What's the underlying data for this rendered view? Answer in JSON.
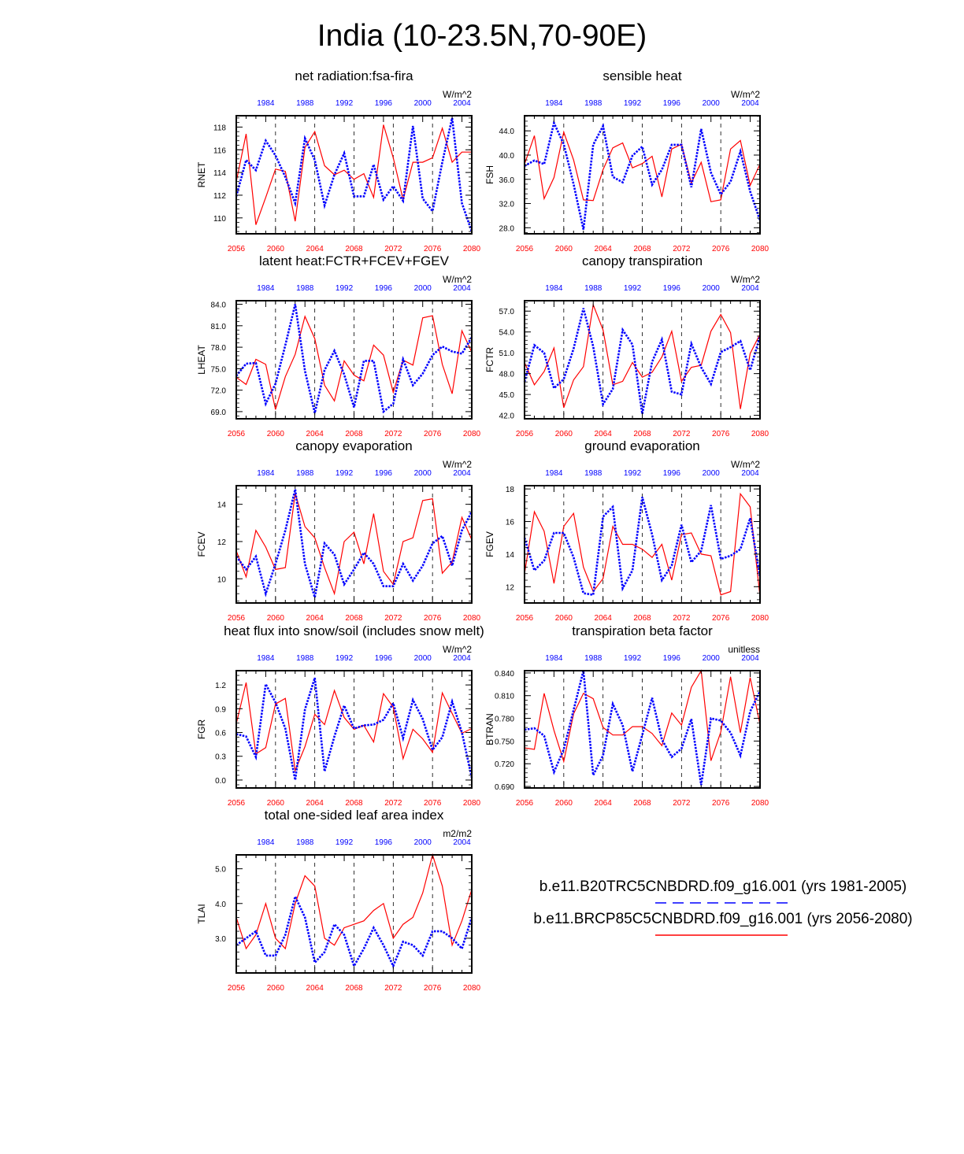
{
  "page": {
    "title": "India (10-23.5N,70-90E)",
    "legend": {
      "entries": [
        {
          "label": "b.e11.B20TRC5CNBDRD.f09_g16.001 (yrs 1981-2005)",
          "color": "#0000ff",
          "style": "dashed"
        },
        {
          "label": "b.e11.BRCP85C5CNBDRD.f09_g16.001 (yrs 2056-2080)",
          "color": "#ff0000",
          "style": "solid"
        }
      ]
    }
  },
  "colors": {
    "historical": "#0000ff",
    "future": "#ff0000",
    "axis": "#000000"
  },
  "chart_data": [
    {
      "type": "line",
      "title": "net radiation:fsa-fira",
      "ylabel": "RNET",
      "units": "W/m^2",
      "ylim": [
        108.6,
        119.0
      ],
      "yticks": [
        110,
        112,
        114,
        116,
        118
      ],
      "ytick_labels": [
        "110",
        "112",
        "114",
        "116",
        "118"
      ],
      "x_bottom_ticks": [
        "2056",
        "2060",
        "2064",
        "2068",
        "2072",
        "2076",
        "2080"
      ],
      "x_top_ticks": [
        "1984",
        "1988",
        "1992",
        "1996",
        "2000",
        "2004"
      ],
      "series": [
        {
          "name": "b.e11.BRCP85C5CNBDRD.f09_g16.001 (yrs 2056-2080)",
          "x_start": 2056,
          "values": [
            113.2,
            117.4,
            109.4,
            111.8,
            114.3,
            114.1,
            109.7,
            116.2,
            117.6,
            114.6,
            113.8,
            114.2,
            113.4,
            113.9,
            111.8,
            118.2,
            115.3,
            111.6,
            114.9,
            114.9,
            115.3,
            117.9,
            114.9,
            115.8,
            115.8
          ]
        },
        {
          "name": "b.e11.B20TRC5CNBDRD.f09_g16.001 (yrs 1981-2005)",
          "x_start": 1981,
          "values": [
            111.9,
            115.1,
            114.2,
            116.8,
            115.5,
            113.6,
            111.3,
            117.0,
            115.1,
            111.1,
            113.8,
            115.7,
            111.9,
            111.9,
            114.7,
            111.6,
            112.8,
            111.5,
            118.1,
            111.7,
            110.6,
            114.9,
            118.8,
            111.3,
            108.8
          ]
        }
      ]
    },
    {
      "type": "line",
      "title": "sensible heat",
      "ylabel": "FSH",
      "units": "W/m^2",
      "ylim": [
        27.0,
        46.5
      ],
      "yticks": [
        28,
        32,
        36,
        40,
        44
      ],
      "ytick_labels": [
        "28.0",
        "32.0",
        "36.0",
        "40.0",
        "44.0"
      ],
      "x_bottom_ticks": [
        "2056",
        "2060",
        "2064",
        "2068",
        "2072",
        "2076",
        "2080"
      ],
      "x_top_ticks": [
        "1984",
        "1988",
        "1992",
        "1996",
        "2000",
        "2004"
      ],
      "series": [
        {
          "name": "b.e11.BRCP85C5CNBDRD.f09_g16.001 (yrs 2056-2080)",
          "x_start": 2056,
          "values": [
            38.5,
            43.2,
            32.8,
            36.3,
            43.8,
            39.2,
            32.6,
            32.5,
            37.6,
            41.2,
            42.0,
            37.9,
            38.6,
            39.8,
            33.1,
            41.0,
            41.8,
            35.4,
            38.8,
            32.3,
            32.6,
            41.0,
            42.4,
            35.0,
            38.5
          ]
        },
        {
          "name": "b.e11.B20TRC5CNBDRD.f09_g16.001 (yrs 1981-2005)",
          "x_start": 1981,
          "values": [
            38.2,
            39.1,
            38.5,
            45.3,
            41.8,
            35.2,
            27.7,
            41.7,
            44.8,
            36.4,
            35.5,
            39.9,
            41.4,
            35.1,
            37.6,
            41.7,
            41.7,
            34.7,
            44.3,
            37.1,
            33.5,
            35.6,
            40.6,
            34.0,
            29.2
          ]
        }
      ]
    },
    {
      "type": "line",
      "title": "latent heat:FCTR+FCEV+FGEV",
      "ylabel": "LHEAT",
      "units": "W/m^2",
      "ylim": [
        68.0,
        84.5
      ],
      "yticks": [
        69,
        72,
        75,
        78,
        81,
        84
      ],
      "ytick_labels": [
        "69.0",
        "72.0",
        "75.0",
        "78.0",
        "81.0",
        "84.0"
      ],
      "x_bottom_ticks": [
        "2056",
        "2060",
        "2064",
        "2068",
        "2072",
        "2076",
        "2080"
      ],
      "x_top_ticks": [
        "1984",
        "1988",
        "1992",
        "1996",
        "2000",
        "2004"
      ],
      "series": [
        {
          "name": "b.e11.BRCP85C5CNBDRD.f09_g16.001 (yrs 2056-2080)",
          "x_start": 2056,
          "values": [
            73.8,
            72.8,
            76.3,
            75.6,
            69.3,
            73.9,
            77.0,
            82.3,
            79.2,
            72.7,
            70.5,
            76.1,
            74.1,
            73.3,
            78.3,
            76.9,
            71.7,
            76.2,
            75.5,
            82.1,
            82.4,
            75.6,
            71.5,
            80.3,
            77.3
          ]
        },
        {
          "name": "b.e11.B20TRC5CNBDRD.f09_g16.001 (yrs 1981-2005)",
          "x_start": 1981,
          "values": [
            74.0,
            75.7,
            75.8,
            70.1,
            72.9,
            78.3,
            84.0,
            74.7,
            68.8,
            74.8,
            77.5,
            74.2,
            69.6,
            76.1,
            76.1,
            69.0,
            70.1,
            76.3,
            72.7,
            74.3,
            76.9,
            78.1,
            77.4,
            77.1,
            79.4
          ]
        }
      ]
    },
    {
      "type": "line",
      "title": "canopy transpiration",
      "ylabel": "FCTR",
      "units": "W/m^2",
      "ylim": [
        41.5,
        58.5
      ],
      "yticks": [
        42,
        45,
        48,
        51,
        54,
        57
      ],
      "ytick_labels": [
        "42.0",
        "45.0",
        "48.0",
        "51.0",
        "54.0",
        "57.0"
      ],
      "x_bottom_ticks": [
        "2056",
        "2060",
        "2064",
        "2068",
        "2072",
        "2076",
        "2080"
      ],
      "x_top_ticks": [
        "1984",
        "1988",
        "1992",
        "1996",
        "2000",
        "2004"
      ],
      "series": [
        {
          "name": "b.e11.BRCP85C5CNBDRD.f09_g16.001 (yrs 2056-2080)",
          "x_start": 2056,
          "values": [
            49.6,
            46.4,
            48.3,
            51.7,
            43.1,
            47.1,
            49.0,
            57.9,
            54.3,
            46.4,
            46.9,
            49.6,
            47.5,
            48.2,
            50.4,
            54.1,
            46.9,
            48.9,
            49.2,
            54.1,
            56.5,
            53.9,
            42.9,
            50.9,
            53.7
          ]
        },
        {
          "name": "b.e11.B20TRC5CNBDRD.f09_g16.001 (yrs 1981-2005)",
          "x_start": 1981,
          "values": [
            46.8,
            52.1,
            51.0,
            45.9,
            47.2,
            51.6,
            57.4,
            51.9,
            43.6,
            45.8,
            54.3,
            52.2,
            42.2,
            49.7,
            52.9,
            45.4,
            45.0,
            52.3,
            48.9,
            46.5,
            51.1,
            51.8,
            52.7,
            48.5,
            53.4
          ]
        }
      ]
    },
    {
      "type": "line",
      "title": "canopy evaporation",
      "ylabel": "FCEV",
      "units": "W/m^2",
      "ylim": [
        8.7,
        15.0
      ],
      "yticks": [
        10,
        12,
        14
      ],
      "ytick_labels": [
        "10",
        "12",
        "14"
      ],
      "x_bottom_ticks": [
        "2056",
        "2060",
        "2064",
        "2068",
        "2072",
        "2076",
        "2080"
      ],
      "x_top_ticks": [
        "1984",
        "1988",
        "1992",
        "1996",
        "2000",
        "2004"
      ],
      "series": [
        {
          "name": "b.e11.BRCP85C5CNBDRD.f09_g16.001 (yrs 2056-2080)",
          "x_start": 2056,
          "values": [
            11.5,
            10.1,
            12.6,
            11.7,
            10.5,
            10.6,
            14.6,
            12.8,
            12.2,
            10.6,
            9.2,
            12.0,
            12.5,
            10.8,
            13.5,
            10.4,
            9.7,
            12.0,
            12.2,
            14.2,
            14.3,
            10.3,
            10.9,
            13.3,
            12.1
          ]
        },
        {
          "name": "b.e11.B20TRC5CNBDRD.f09_g16.001 (yrs 1981-2005)",
          "x_start": 1981,
          "values": [
            11.2,
            10.5,
            11.2,
            9.2,
            10.8,
            12.6,
            14.8,
            10.8,
            9.0,
            11.9,
            11.3,
            9.7,
            10.5,
            11.4,
            10.8,
            9.6,
            9.6,
            10.8,
            9.9,
            10.7,
            11.9,
            12.3,
            10.7,
            12.6,
            13.6
          ]
        }
      ]
    },
    {
      "type": "line",
      "title": "ground evaporation",
      "ylabel": "FGEV",
      "units": "W/m^2",
      "ylim": [
        11.0,
        18.2
      ],
      "yticks": [
        12,
        14,
        16,
        18
      ],
      "ytick_labels": [
        "12",
        "14",
        "16",
        "18"
      ],
      "x_bottom_ticks": [
        "2056",
        "2060",
        "2064",
        "2068",
        "2072",
        "2076",
        "2080"
      ],
      "x_top_ticks": [
        "1984",
        "1988",
        "1992",
        "1996",
        "2000",
        "2004"
      ],
      "series": [
        {
          "name": "b.e11.BRCP85C5CNBDRD.f09_g16.001 (yrs 2056-2080)",
          "x_start": 2056,
          "values": [
            12.8,
            16.6,
            15.4,
            12.2,
            15.7,
            16.5,
            13.2,
            11.7,
            12.5,
            15.7,
            14.6,
            14.6,
            14.3,
            13.8,
            14.6,
            12.4,
            15.2,
            15.3,
            14.0,
            13.9,
            11.5,
            11.7,
            17.7,
            16.9,
            11.4
          ]
        },
        {
          "name": "b.e11.B20TRC5CNBDRD.f09_g16.001 (yrs 1981-2005)",
          "x_start": 1981,
          "values": [
            15.0,
            13.0,
            13.6,
            15.3,
            15.3,
            13.8,
            11.6,
            11.5,
            16.3,
            16.9,
            11.9,
            13.0,
            17.5,
            15.2,
            12.4,
            13.3,
            15.8,
            13.5,
            14.2,
            17.0,
            13.7,
            13.9,
            14.3,
            16.2,
            12.6
          ]
        }
      ]
    },
    {
      "type": "line",
      "title": "heat flux into snow/soil (includes snow melt)",
      "ylabel": "FGR",
      "units": "W/m^2",
      "ylim": [
        -0.1,
        1.38
      ],
      "yticks": [
        0.0,
        0.3,
        0.6,
        0.9,
        1.2
      ],
      "ytick_labels": [
        "0.0",
        "0.3",
        "0.6",
        "0.9",
        "1.2"
      ],
      "x_bottom_ticks": [
        "2056",
        "2060",
        "2064",
        "2068",
        "2072",
        "2076",
        "2080"
      ],
      "x_top_ticks": [
        "1984",
        "1988",
        "1992",
        "1996",
        "2000",
        "2004"
      ],
      "series": [
        {
          "name": "b.e11.BRCP85C5CNBDRD.f09_g16.001 (yrs 2056-2080)",
          "x_start": 2056,
          "values": [
            0.71,
            1.23,
            0.33,
            0.41,
            0.96,
            1.03,
            0.12,
            0.42,
            0.83,
            0.7,
            1.13,
            0.79,
            0.64,
            0.69,
            0.48,
            1.09,
            0.92,
            0.27,
            0.64,
            0.52,
            0.35,
            1.1,
            0.84,
            0.59,
            0.65
          ]
        },
        {
          "name": "b.e11.B20TRC5CNBDRD.f09_g16.001 (yrs 1981-2005)",
          "x_start": 1981,
          "values": [
            0.58,
            0.55,
            0.29,
            1.21,
            0.98,
            0.65,
            0.0,
            0.89,
            1.29,
            0.11,
            0.55,
            0.94,
            0.65,
            0.69,
            0.7,
            0.76,
            0.97,
            0.53,
            1.01,
            0.77,
            0.38,
            0.54,
            0.99,
            0.6,
            0.03
          ]
        }
      ]
    },
    {
      "type": "line",
      "title": "transpiration beta factor",
      "ylabel": "BTRAN",
      "units": "unitless",
      "ylim": [
        0.688,
        0.843
      ],
      "yticks": [
        0.69,
        0.72,
        0.75,
        0.78,
        0.81,
        0.84
      ],
      "ytick_labels": [
        "0.690",
        "0.720",
        "0.750",
        "0.780",
        "0.810",
        "0.840"
      ],
      "x_bottom_ticks": [
        "2056",
        "2060",
        "2064",
        "2068",
        "2072",
        "2076",
        "2080"
      ],
      "x_top_ticks": [
        "1984",
        "1988",
        "1992",
        "1996",
        "2000",
        "2004"
      ],
      "series": [
        {
          "name": "b.e11.BRCP85C5CNBDRD.f09_g16.001 (yrs 2056-2080)",
          "x_start": 2056,
          "values": [
            0.741,
            0.739,
            0.813,
            0.764,
            0.723,
            0.786,
            0.813,
            0.806,
            0.768,
            0.758,
            0.758,
            0.769,
            0.769,
            0.76,
            0.744,
            0.787,
            0.771,
            0.821,
            0.843,
            0.724,
            0.762,
            0.835,
            0.761,
            0.834,
            0.772
          ]
        },
        {
          "name": "b.e11.B20TRC5CNBDRD.f09_g16.001 (yrs 1981-2005)",
          "x_start": 1981,
          "values": [
            0.765,
            0.767,
            0.757,
            0.709,
            0.739,
            0.791,
            0.843,
            0.705,
            0.731,
            0.799,
            0.771,
            0.71,
            0.758,
            0.807,
            0.752,
            0.729,
            0.74,
            0.779,
            0.692,
            0.78,
            0.777,
            0.761,
            0.731,
            0.789,
            0.816
          ]
        }
      ]
    },
    {
      "type": "line",
      "title": "total one-sided leaf area index",
      "ylabel": "TLAI",
      "units": "m2/m2",
      "ylim": [
        2.0,
        5.4
      ],
      "yticks": [
        3.0,
        4.0,
        5.0
      ],
      "ytick_labels": [
        "3.0",
        "4.0",
        "5.0"
      ],
      "x_bottom_ticks": [
        "2056",
        "2060",
        "2064",
        "2068",
        "2072",
        "2076",
        "2080"
      ],
      "x_top_ticks": [
        "1984",
        "1988",
        "1992",
        "1996",
        "2000",
        "2004"
      ],
      "series": [
        {
          "name": "b.e11.BRCP85C5CNBDRD.f09_g16.001 (yrs 2056-2080)",
          "x_start": 2056,
          "values": [
            3.6,
            2.7,
            3.1,
            4.0,
            3.0,
            2.7,
            4.0,
            4.8,
            4.5,
            3.0,
            2.8,
            3.3,
            3.4,
            3.5,
            3.8,
            4.0,
            3.0,
            3.4,
            3.6,
            4.3,
            5.4,
            4.5,
            2.8,
            3.5,
            4.4
          ]
        },
        {
          "name": "b.e11.B20TRC5CNBDRD.f09_g16.001 (yrs 1981-2005)",
          "x_start": 1981,
          "values": [
            2.8,
            3.0,
            3.2,
            2.5,
            2.5,
            3.1,
            4.2,
            3.6,
            2.3,
            2.6,
            3.4,
            3.1,
            2.2,
            2.7,
            3.3,
            2.8,
            2.2,
            2.9,
            2.8,
            2.5,
            3.2,
            3.2,
            3.0,
            2.7,
            3.6
          ]
        }
      ]
    }
  ]
}
